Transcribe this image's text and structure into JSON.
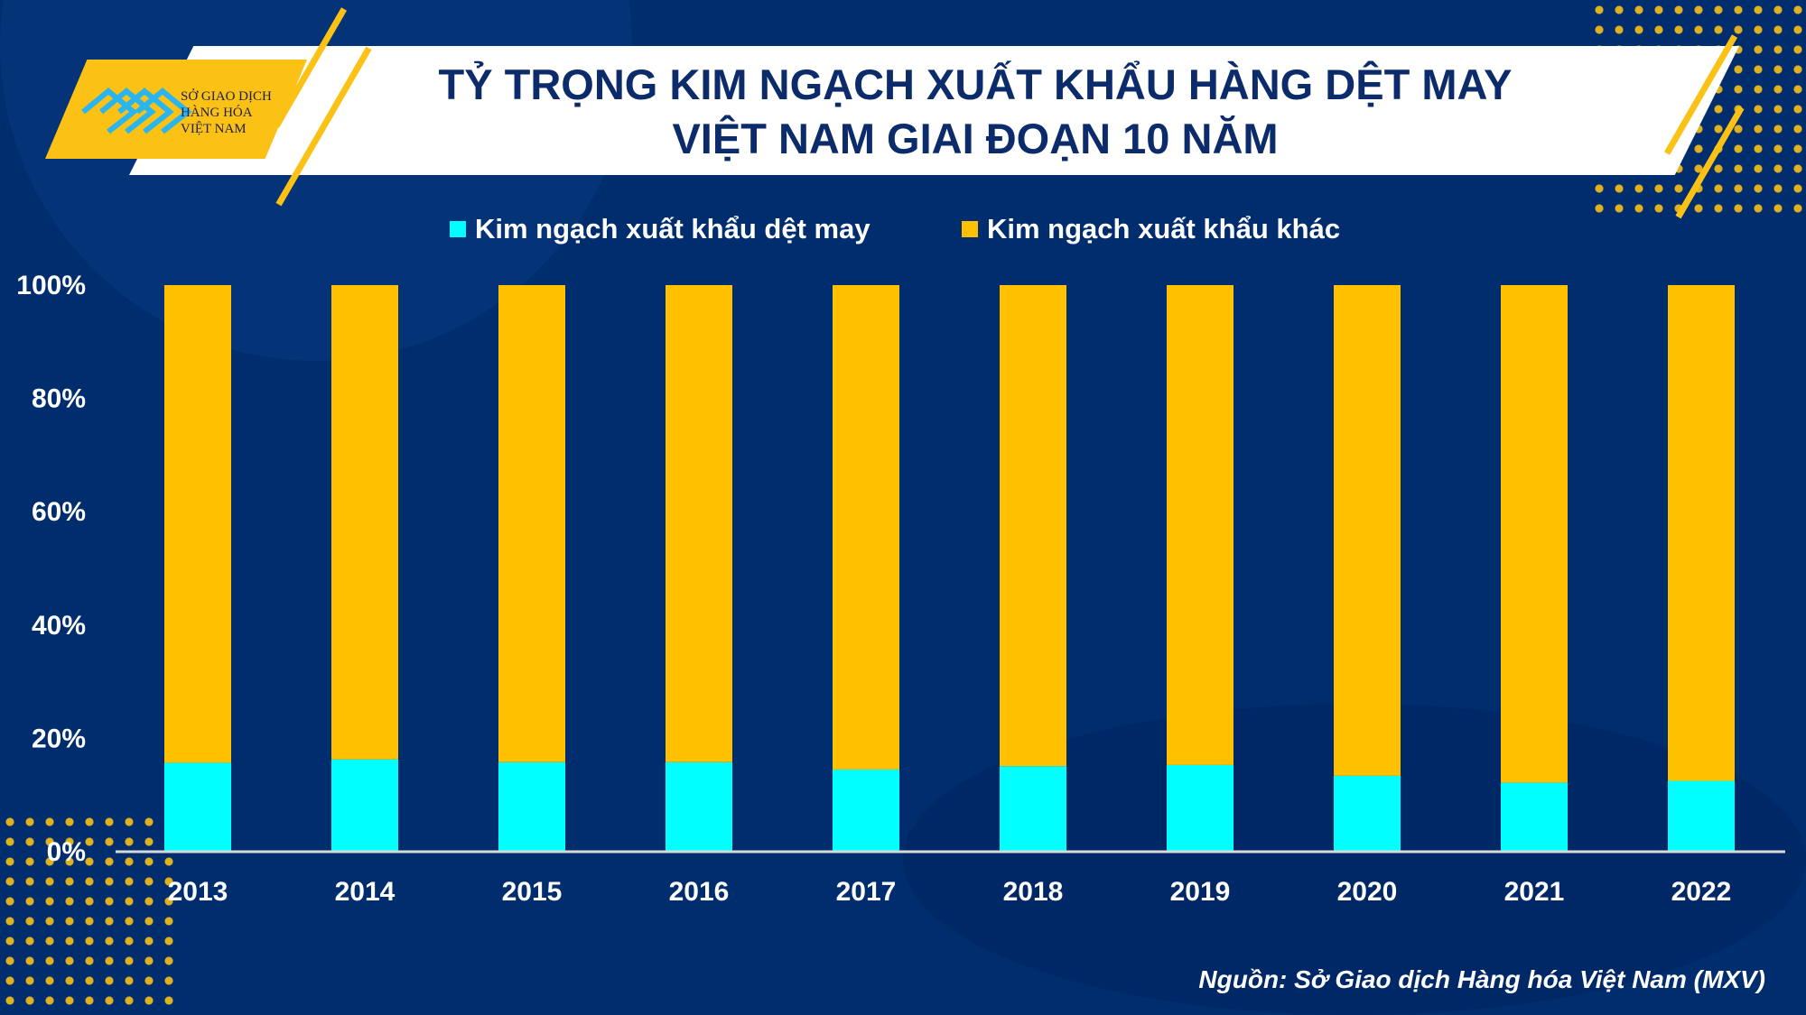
{
  "header": {
    "title_line1": "TỶ TRỌNG KIM NGẠCH XUẤT KHẨU HÀNG DỆT MAY",
    "title_line2": "VIỆT NAM GIAI ĐOẠN 10 NĂM",
    "logo_text": [
      "SỞ GIAO DỊCH",
      "HÀNG HÓA",
      "VIỆT NAM"
    ]
  },
  "source": "Nguồn: Sở Giao dịch Hàng hóa Việt Nam (MXV)",
  "chart_data": {
    "type": "bar",
    "stacked": true,
    "percent": true,
    "categories": [
      "2013",
      "2014",
      "2015",
      "2016",
      "2017",
      "2018",
      "2019",
      "2020",
      "2021",
      "2022"
    ],
    "series": [
      {
        "name": "Kim ngạch xuất khẩu dệt may",
        "color": "#00ffff",
        "values": [
          15.7,
          16.3,
          15.8,
          15.8,
          14.5,
          15.1,
          15.3,
          13.4,
          12.2,
          12.5
        ]
      },
      {
        "name": "Kim ngạch xuất khẩu khác",
        "color": "#ffc000",
        "values": [
          84.3,
          83.7,
          84.2,
          84.2,
          85.5,
          84.9,
          84.7,
          86.6,
          87.8,
          87.5
        ]
      }
    ],
    "ylim": [
      0,
      100
    ],
    "yticks": [
      "0%",
      "20%",
      "40%",
      "60%",
      "80%",
      "100%"
    ],
    "legend_position": "top",
    "grid": false
  }
}
